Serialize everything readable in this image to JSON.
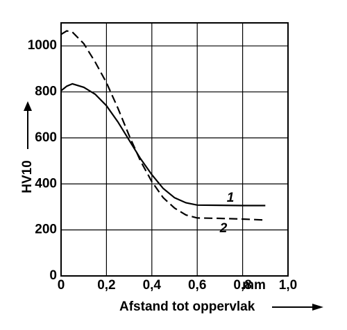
{
  "chart_data": {
    "type": "line",
    "xlabel": "Afstand tot oppervlak",
    "ylabel": "HV10",
    "x_unit": "mm",
    "x": [
      0,
      0.025,
      0.05,
      0.1,
      0.15,
      0.2,
      0.25,
      0.3,
      0.35,
      0.4,
      0.45,
      0.5,
      0.55,
      0.6,
      0.7,
      0.8,
      0.9
    ],
    "series": [
      {
        "name": "1",
        "color": "#000000",
        "line_style": "solid",
        "values": [
          805,
          825,
          835,
          820,
          790,
          740,
          670,
          590,
          510,
          440,
          380,
          340,
          318,
          308,
          307,
          306,
          306
        ]
      },
      {
        "name": "2",
        "color": "#000000",
        "line_style": "dashed",
        "values": [
          1050,
          1065,
          1060,
          1010,
          930,
          840,
          730,
          610,
          500,
          410,
          340,
          295,
          265,
          252,
          250,
          247,
          243
        ]
      }
    ],
    "xlim": [
      0,
      1
    ],
    "ylim": [
      0,
      1100
    ],
    "xticks": [
      0,
      {
        "value": 0.2,
        "label": "0,2"
      },
      {
        "value": 0.4,
        "label": "0,4"
      },
      {
        "value": 0.6,
        "label": "0,6"
      },
      {
        "value": 0.8,
        "label": "0,8"
      },
      {
        "value": 1,
        "label": "1,0"
      }
    ],
    "yticks": [
      0,
      200,
      400,
      600,
      800,
      1000
    ],
    "grid": true
  }
}
